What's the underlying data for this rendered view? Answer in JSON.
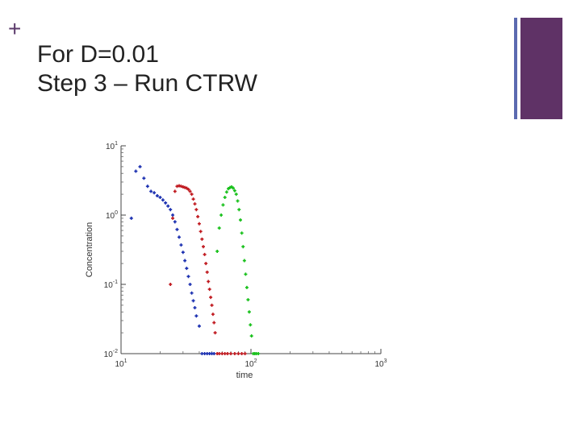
{
  "slide": {
    "plus_symbol": "+",
    "title_line1": "For D=0.01",
    "title_line2": "Step 3 – Run CTRW"
  },
  "chart_data": {
    "type": "scatter",
    "title": "",
    "xlabel": "time",
    "ylabel": "Concentration",
    "x_scale": "log",
    "y_scale": "log",
    "xlim": [
      10,
      1000
    ],
    "ylim": [
      0.01,
      10
    ],
    "x_ticks": [
      {
        "value": 10,
        "label": "10^1"
      },
      {
        "value": 100,
        "label": "10^2"
      },
      {
        "value": 1000,
        "label": "10^3"
      }
    ],
    "y_ticks": [
      {
        "value": 0.01,
        "label": "10^-2"
      },
      {
        "value": 0.1,
        "label": "10^-1"
      },
      {
        "value": 1,
        "label": "10^0"
      },
      {
        "value": 10,
        "label": "10^1"
      }
    ],
    "grid": false,
    "legend": false,
    "series": [
      {
        "color": "#1a2fb0",
        "points": [
          [
            12.0,
            0.9
          ],
          [
            13.0,
            4.3
          ],
          [
            14.0,
            5.0
          ],
          [
            15.0,
            3.4
          ],
          [
            16.0,
            2.6
          ],
          [
            17.0,
            2.2
          ],
          [
            18.0,
            2.1
          ],
          [
            19.0,
            1.9
          ],
          [
            20.0,
            1.8
          ],
          [
            21.0,
            1.65
          ],
          [
            22.0,
            1.5
          ],
          [
            23.0,
            1.35
          ],
          [
            24.0,
            1.2
          ],
          [
            25.0,
            1.0
          ],
          [
            26.0,
            0.8
          ],
          [
            27.0,
            0.62
          ],
          [
            28.0,
            0.48
          ],
          [
            29.0,
            0.37
          ],
          [
            30.0,
            0.29
          ],
          [
            31.0,
            0.22
          ],
          [
            32.0,
            0.17
          ],
          [
            33.0,
            0.13
          ],
          [
            34.0,
            0.1
          ],
          [
            35.0,
            0.075
          ],
          [
            36.0,
            0.058
          ],
          [
            37.0,
            0.046
          ],
          [
            38.0,
            0.035
          ],
          [
            40.0,
            0.025
          ],
          [
            42.0,
            0.01
          ],
          [
            44.0,
            0.01
          ],
          [
            46.0,
            0.01
          ],
          [
            48.0,
            0.01
          ],
          [
            50.0,
            0.01
          ],
          [
            52.0,
            0.01
          ]
        ]
      },
      {
        "color": "#c0191f",
        "points": [
          [
            24.0,
            0.1
          ],
          [
            25.0,
            0.9
          ],
          [
            26.0,
            2.2
          ],
          [
            27.0,
            2.6
          ],
          [
            28.0,
            2.65
          ],
          [
            29.0,
            2.6
          ],
          [
            30.0,
            2.55
          ],
          [
            31.0,
            2.5
          ],
          [
            32.0,
            2.45
          ],
          [
            33.0,
            2.35
          ],
          [
            34.0,
            2.2
          ],
          [
            35.0,
            2.0
          ],
          [
            36.0,
            1.7
          ],
          [
            37.0,
            1.45
          ],
          [
            38.0,
            1.2
          ],
          [
            39.0,
            0.95
          ],
          [
            40.0,
            0.75
          ],
          [
            41.0,
            0.58
          ],
          [
            42.0,
            0.45
          ],
          [
            43.0,
            0.35
          ],
          [
            44.0,
            0.27
          ],
          [
            45.0,
            0.2
          ],
          [
            46.0,
            0.15
          ],
          [
            47.0,
            0.11
          ],
          [
            48.0,
            0.085
          ],
          [
            49.0,
            0.065
          ],
          [
            50.0,
            0.05
          ],
          [
            51.0,
            0.037
          ],
          [
            52.0,
            0.028
          ],
          [
            53.0,
            0.02
          ],
          [
            55.0,
            0.01
          ],
          [
            57.0,
            0.01
          ],
          [
            60.0,
            0.01
          ],
          [
            63.0,
            0.01
          ],
          [
            66.0,
            0.01
          ],
          [
            70.0,
            0.01
          ],
          [
            75.0,
            0.01
          ],
          [
            80.0,
            0.01
          ],
          [
            85.0,
            0.01
          ],
          [
            90.0,
            0.01
          ]
        ]
      },
      {
        "color": "#17c01a",
        "points": [
          [
            55.0,
            0.3
          ],
          [
            57.0,
            0.65
          ],
          [
            59.0,
            1.0
          ],
          [
            61.0,
            1.4
          ],
          [
            63.0,
            1.8
          ],
          [
            65.0,
            2.15
          ],
          [
            67.0,
            2.4
          ],
          [
            69.0,
            2.5
          ],
          [
            71.0,
            2.55
          ],
          [
            73.0,
            2.45
          ],
          [
            75.0,
            2.25
          ],
          [
            77.0,
            2.0
          ],
          [
            79.0,
            1.6
          ],
          [
            81.0,
            1.2
          ],
          [
            83.0,
            0.85
          ],
          [
            85.0,
            0.55
          ],
          [
            87.0,
            0.35
          ],
          [
            89.0,
            0.22
          ],
          [
            91.0,
            0.14
          ],
          [
            93.0,
            0.09
          ],
          [
            95.0,
            0.06
          ],
          [
            97.0,
            0.04
          ],
          [
            99.0,
            0.026
          ],
          [
            101.0,
            0.018
          ],
          [
            104.0,
            0.01
          ],
          [
            107.0,
            0.01
          ],
          [
            110.0,
            0.01
          ],
          [
            114.0,
            0.01
          ]
        ]
      }
    ]
  }
}
